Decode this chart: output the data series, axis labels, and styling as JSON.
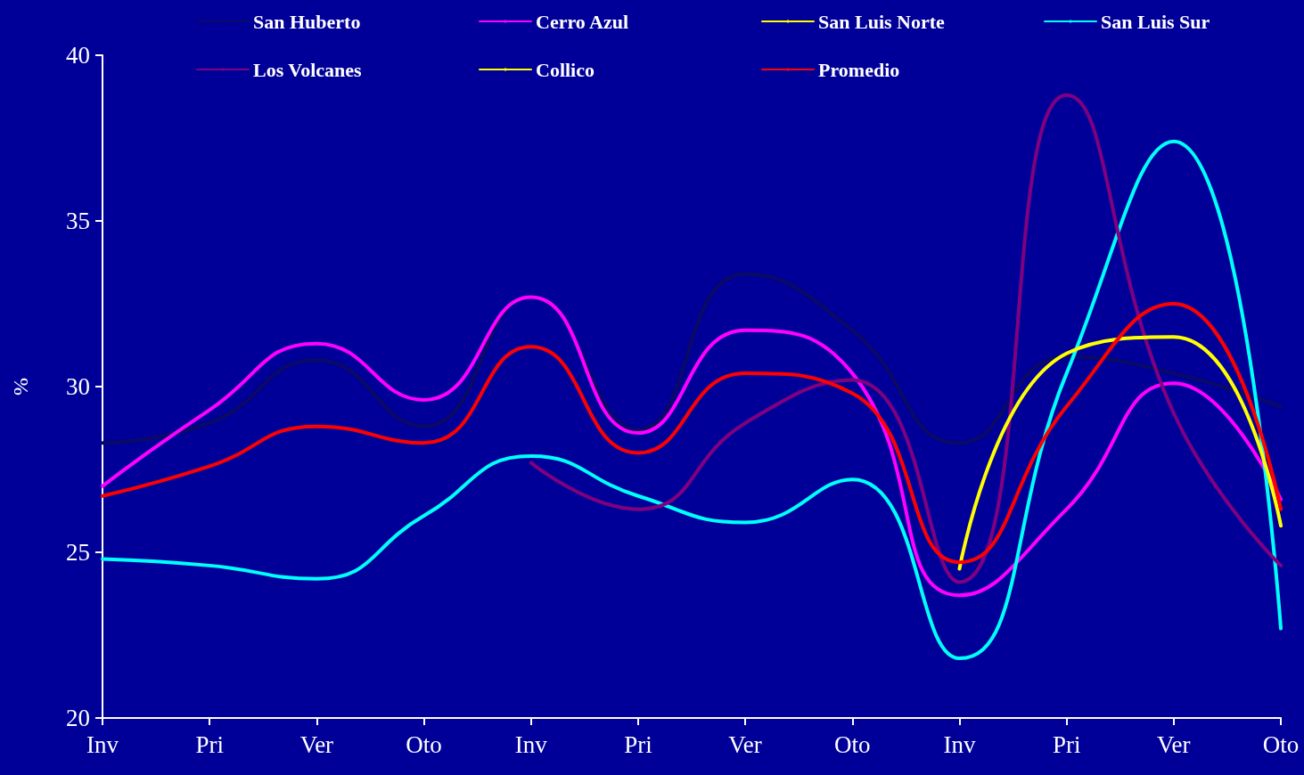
{
  "chart_data": {
    "type": "line",
    "ylabel": "%",
    "categories": [
      "Inv",
      "Pri",
      "Ver",
      "Oto",
      "Inv",
      "Pri",
      "Ver",
      "Oto",
      "Inv",
      "Pri",
      "Ver",
      "Oto"
    ],
    "series": [
      {
        "name": "San Huberto",
        "color": "#0a0a66",
        "values": [
          28.3,
          28.9,
          30.8,
          28.8,
          32.7,
          28.7,
          33.4,
          31.7,
          28.3,
          30.9,
          30.4,
          29.4
        ]
      },
      {
        "name": "Cerro Azul",
        "color": "#ff00ff",
        "values": [
          27.0,
          29.3,
          31.3,
          29.6,
          32.7,
          28.6,
          31.7,
          30.4,
          23.7,
          26.3,
          30.1,
          26.6
        ]
      },
      {
        "name": "San Luis Norte",
        "color": "#ffff00",
        "values": [
          null,
          null,
          null,
          null,
          null,
          null,
          null,
          null,
          null,
          null,
          null,
          null
        ]
      },
      {
        "name": "San Luis Sur",
        "color": "#00ffff",
        "values": [
          24.8,
          24.6,
          24.2,
          26.1,
          27.9,
          26.7,
          25.9,
          27.2,
          21.8,
          30.4,
          37.4,
          22.7
        ]
      },
      {
        "name": "Los Volcanes",
        "color": "#800080",
        "values": [
          null,
          null,
          null,
          null,
          27.7,
          26.3,
          28.9,
          30.2,
          24.1,
          38.8,
          29.2,
          24.6
        ]
      },
      {
        "name": "Collico",
        "color": "#ffff00",
        "values": [
          null,
          null,
          null,
          null,
          null,
          null,
          null,
          null,
          24.5,
          31.0,
          31.5,
          25.8
        ]
      },
      {
        "name": "Promedio",
        "color": "#ff0000",
        "values": [
          26.7,
          27.6,
          28.8,
          28.3,
          31.2,
          28.0,
          30.4,
          29.8,
          24.7,
          29.4,
          32.5,
          26.3
        ]
      }
    ],
    "ylim": [
      20,
      40
    ],
    "yticks": [
      20,
      25,
      30,
      35,
      40
    ],
    "grid": false,
    "legend": "top",
    "marker": "none",
    "line_style": "solid"
  }
}
